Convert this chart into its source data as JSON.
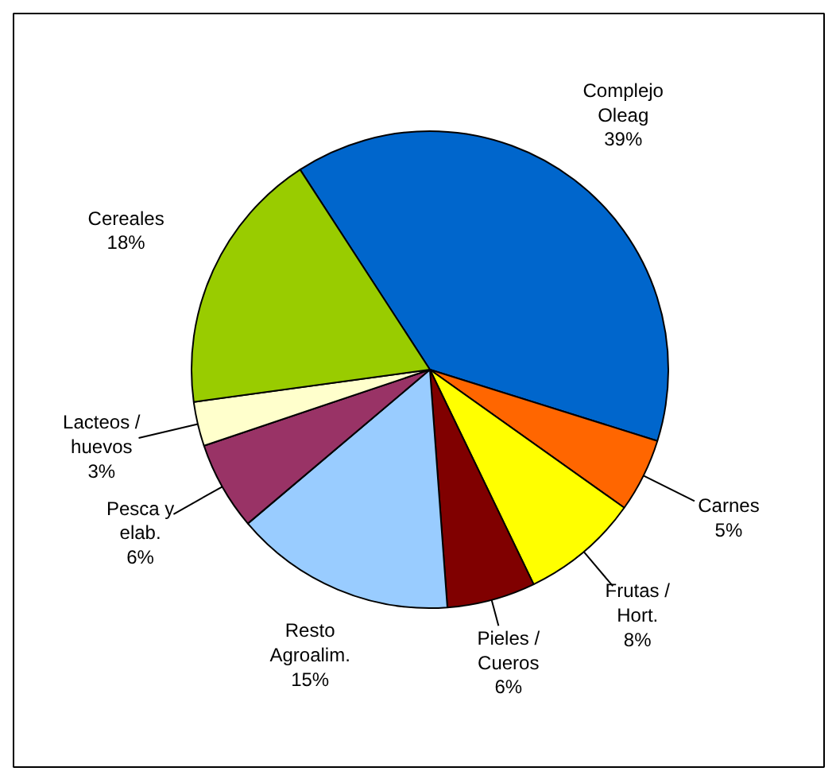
{
  "chart_data": {
    "type": "pie",
    "categories": [
      "Complejo\nOleag",
      "Carnes",
      "Frutas /\nHort.",
      "Pieles /\nCueros",
      "Resto\nAgroalim.",
      "Pesca y\nelab.",
      "Lacteos /\nhuevos",
      "Cereales"
    ],
    "values": [
      39,
      5,
      8,
      6,
      15,
      6,
      3,
      18
    ],
    "value_labels": [
      "39%",
      "5%",
      "8%",
      "6%",
      "15%",
      "6%",
      "3%",
      "18%"
    ],
    "colors": [
      "#0066cc",
      "#ff6600",
      "#ffff00",
      "#800000",
      "#99ccff",
      "#993366",
      "#ffffcc",
      "#99cc00"
    ],
    "legend": false
  }
}
